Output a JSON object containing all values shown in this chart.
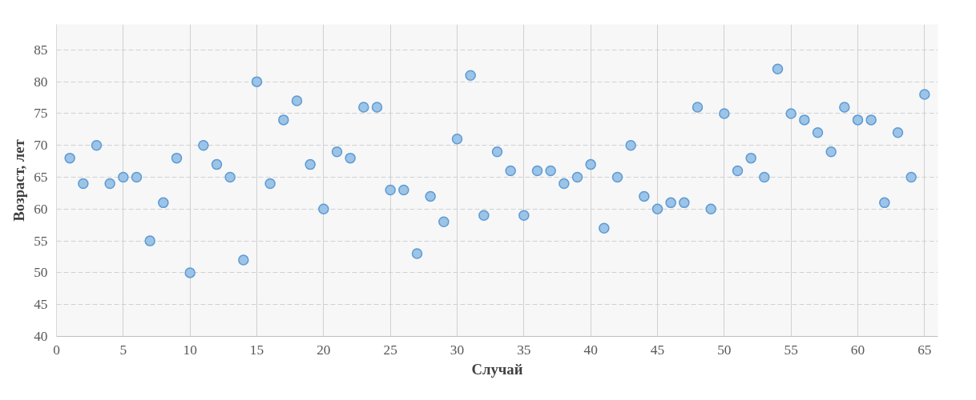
{
  "chart_data": {
    "type": "scatter",
    "xlabel": "Случай",
    "ylabel": "Возраст, лет",
    "x": [
      1,
      2,
      3,
      4,
      5,
      6,
      7,
      8,
      9,
      10,
      11,
      12,
      13,
      14,
      15,
      16,
      17,
      18,
      19,
      20,
      21,
      22,
      23,
      24,
      25,
      26,
      27,
      28,
      29,
      30,
      31,
      32,
      33,
      34,
      35,
      36,
      37,
      38,
      39,
      40,
      41,
      42,
      43,
      44,
      45,
      46,
      47,
      48,
      49,
      50,
      51,
      52,
      53,
      54,
      55,
      56,
      57,
      58,
      59,
      60,
      61,
      62,
      63,
      64,
      65
    ],
    "series": [
      {
        "color": "#9dc3e6",
        "values": [
          68,
          64,
          70,
          64,
          65,
          65,
          55,
          61,
          68,
          50,
          70,
          67,
          65,
          52,
          80,
          64,
          74,
          77,
          67,
          60,
          69,
          68,
          76,
          76,
          63,
          63,
          53,
          62,
          58,
          71,
          81,
          59,
          69,
          66,
          59,
          66,
          66,
          64,
          65,
          67,
          57,
          65,
          70,
          62,
          60,
          61,
          61,
          76,
          60,
          75,
          66,
          68,
          65,
          82,
          75,
          74,
          72,
          69,
          76,
          74,
          74,
          61,
          72,
          65,
          78
        ]
      }
    ],
    "xlim": [
      0,
      66
    ],
    "ylim": [
      40,
      89
    ],
    "xticks": [
      0,
      5,
      10,
      15,
      20,
      25,
      30,
      35,
      40,
      45,
      50,
      55,
      60,
      65
    ],
    "yticks": [
      40,
      45,
      50,
      55,
      60,
      65,
      70,
      75,
      80,
      85
    ],
    "grid": true,
    "marker": "circle"
  }
}
